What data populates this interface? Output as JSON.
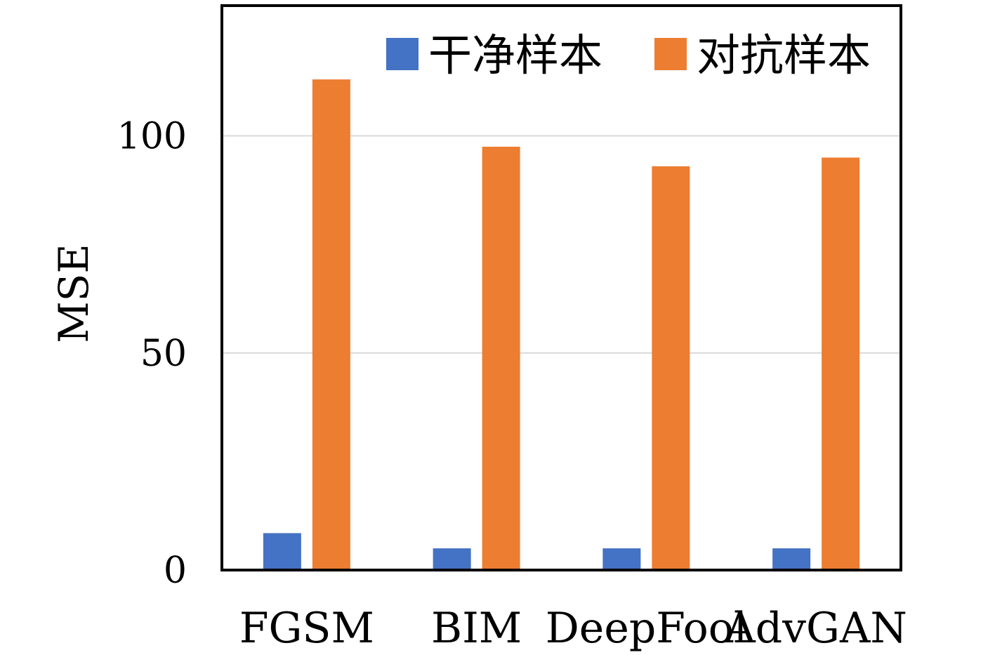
{
  "chart_data": {
    "type": "bar",
    "categories": [
      "FGSM",
      "BIM",
      "DeepFool",
      "AdvGAN"
    ],
    "series": [
      {
        "name": "干净样本",
        "color": "#4472C4",
        "values": [
          8.5,
          5,
          5,
          5
        ]
      },
      {
        "name": "对抗样本",
        "color": "#ED7D31",
        "values": [
          113,
          97.5,
          93,
          95
        ]
      }
    ],
    "ylabel": "MSE",
    "xlabel": "",
    "ylim": [
      0,
      130
    ],
    "yticks": [
      0,
      50,
      100
    ],
    "grid": true,
    "legend_position": "top-right"
  }
}
